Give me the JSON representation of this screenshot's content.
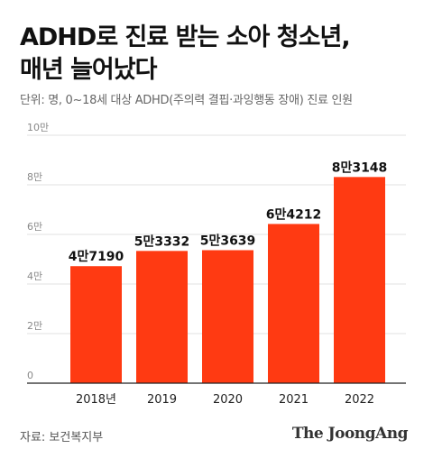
{
  "title_line1": "ADHD로 진료 받는 소아 청소년,",
  "title_line2": "매년 늘어났다",
  "subtitle": "단위: 명, 0~18세 대상 ADHD(주의력 결핍·과잉행동 장애) 진료 인원",
  "source": "자료: 보건복지부",
  "brand": "The JoongAng",
  "colors": {
    "bar": "#ff3a12",
    "grid": "#e2e2e2",
    "axis": "#222222"
  },
  "chart_data": {
    "type": "bar",
    "categories": [
      "2018년",
      "2019",
      "2020",
      "2021",
      "2022"
    ],
    "values": [
      47190,
      53332,
      53639,
      64212,
      83148
    ],
    "data_labels": [
      "4만7190",
      "5만3332",
      "5만3639",
      "6만4212",
      "8만3148"
    ],
    "y_ticks": [
      0,
      20000,
      40000,
      60000,
      80000,
      100000
    ],
    "y_tick_labels": [
      "0",
      "2만",
      "4만",
      "6만",
      "8만",
      "10만"
    ],
    "ylim": [
      0,
      100000
    ],
    "grid": true
  }
}
